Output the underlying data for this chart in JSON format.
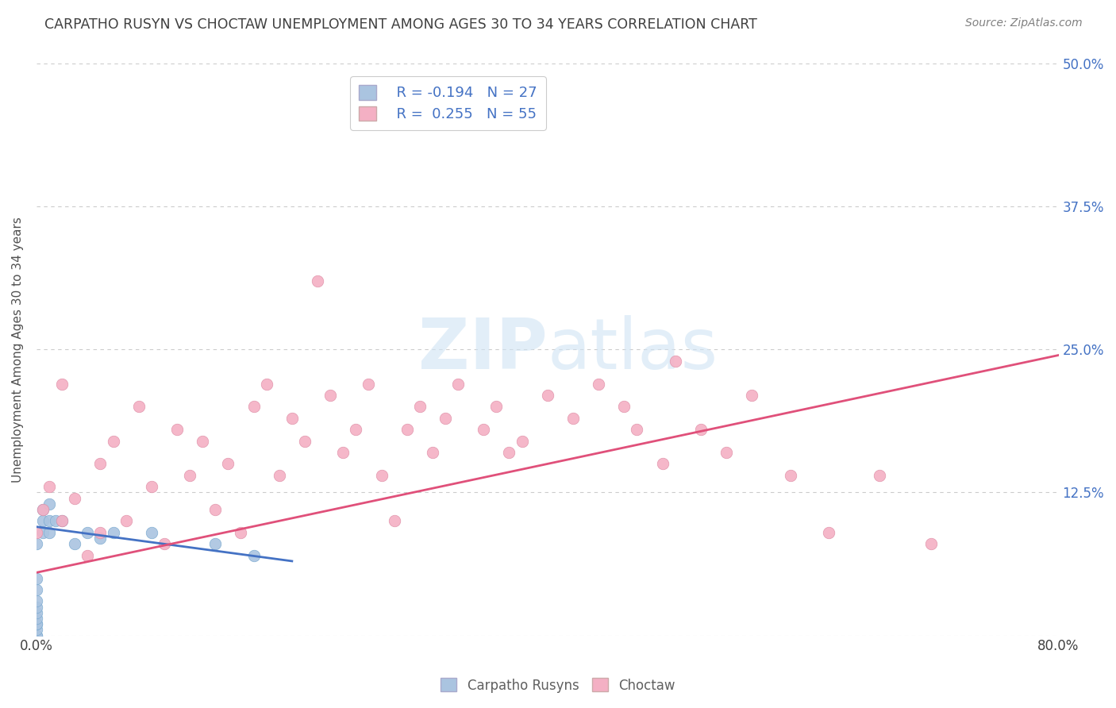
{
  "title": "CARPATHO RUSYN VS CHOCTAW UNEMPLOYMENT AMONG AGES 30 TO 34 YEARS CORRELATION CHART",
  "source": "Source: ZipAtlas.com",
  "ylabel": "Unemployment Among Ages 30 to 34 years",
  "blue_label": "Carpatho Rusyns",
  "pink_label": "Choctaw",
  "blue_R": -0.194,
  "blue_N": 27,
  "pink_R": 0.255,
  "pink_N": 55,
  "xlim": [
    0.0,
    0.8
  ],
  "ylim": [
    0.0,
    0.5
  ],
  "xtick_labels": [
    "0.0%",
    "80.0%"
  ],
  "ytick_positions": [
    0.0,
    0.125,
    0.25,
    0.375,
    0.5
  ],
  "ytick_labels": [
    "",
    "12.5%",
    "25.0%",
    "37.5%",
    "50.0%"
  ],
  "blue_scatter_x": [
    0.0,
    0.0,
    0.0,
    0.0,
    0.0,
    0.0,
    0.0,
    0.0,
    0.0,
    0.0,
    0.0,
    0.0,
    0.005,
    0.005,
    0.005,
    0.01,
    0.01,
    0.01,
    0.015,
    0.02,
    0.03,
    0.04,
    0.05,
    0.06,
    0.09,
    0.14,
    0.17
  ],
  "blue_scatter_y": [
    0.0,
    0.0,
    0.005,
    0.01,
    0.01,
    0.015,
    0.02,
    0.025,
    0.03,
    0.04,
    0.05,
    0.08,
    0.09,
    0.1,
    0.11,
    0.09,
    0.1,
    0.115,
    0.1,
    0.1,
    0.08,
    0.09,
    0.085,
    0.09,
    0.09,
    0.08,
    0.07
  ],
  "pink_scatter_x": [
    0.0,
    0.005,
    0.01,
    0.02,
    0.02,
    0.03,
    0.04,
    0.05,
    0.05,
    0.06,
    0.07,
    0.08,
    0.09,
    0.1,
    0.11,
    0.12,
    0.13,
    0.14,
    0.15,
    0.16,
    0.17,
    0.18,
    0.19,
    0.2,
    0.21,
    0.22,
    0.23,
    0.24,
    0.25,
    0.26,
    0.27,
    0.28,
    0.29,
    0.3,
    0.31,
    0.32,
    0.33,
    0.35,
    0.36,
    0.37,
    0.38,
    0.4,
    0.42,
    0.44,
    0.46,
    0.47,
    0.49,
    0.5,
    0.52,
    0.54,
    0.56,
    0.59,
    0.62,
    0.66,
    0.7
  ],
  "pink_scatter_y": [
    0.09,
    0.11,
    0.13,
    0.22,
    0.1,
    0.12,
    0.07,
    0.15,
    0.09,
    0.17,
    0.1,
    0.2,
    0.13,
    0.08,
    0.18,
    0.14,
    0.17,
    0.11,
    0.15,
    0.09,
    0.2,
    0.22,
    0.14,
    0.19,
    0.17,
    0.31,
    0.21,
    0.16,
    0.18,
    0.22,
    0.14,
    0.1,
    0.18,
    0.2,
    0.16,
    0.19,
    0.22,
    0.18,
    0.2,
    0.16,
    0.17,
    0.21,
    0.19,
    0.22,
    0.2,
    0.18,
    0.15,
    0.24,
    0.18,
    0.16,
    0.21,
    0.14,
    0.09,
    0.14,
    0.08
  ],
  "blue_line_x": [
    0.0,
    0.2
  ],
  "blue_line_y": [
    0.095,
    0.065
  ],
  "pink_line_x": [
    0.0,
    0.8
  ],
  "pink_line_y": [
    0.055,
    0.245
  ],
  "blue_color": "#aac4e0",
  "blue_edge_color": "#7aaad0",
  "blue_line_color": "#4472c4",
  "pink_color": "#f4b0c4",
  "pink_edge_color": "#e090a8",
  "pink_line_color": "#e0507a",
  "background_color": "#ffffff",
  "grid_color": "#cccccc",
  "legend_text_color": "#4472c4",
  "title_color": "#404040",
  "source_color": "#808080",
  "watermark_color": "#d0e4f4",
  "watermark_alpha": 0.6
}
